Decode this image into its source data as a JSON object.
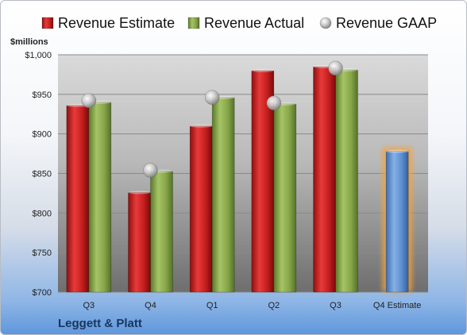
{
  "company": "Leggett & Platt",
  "chart_data": {
    "type": "bar",
    "ylabel": "$millions",
    "categories": [
      "Q3",
      "Q4",
      "Q1",
      "Q2",
      "Q3",
      "Q4 Estimate"
    ],
    "ylim": [
      700,
      1000
    ],
    "yticks": [
      "$700",
      "$750",
      "$800",
      "$850",
      "$900",
      "$950",
      "$1,000"
    ],
    "ytick_values": [
      700,
      750,
      800,
      850,
      900,
      950,
      1000
    ],
    "grid": true,
    "legend_position": "top",
    "series": [
      {
        "name": "Revenue Estimate",
        "kind": "bar",
        "color": "#d42a2a",
        "values": [
          936,
          826,
          910,
          980,
          985,
          null
        ]
      },
      {
        "name": "Revenue Actual",
        "kind": "bar",
        "color": "#8cac4c",
        "values": [
          940,
          853,
          946,
          938,
          981,
          null
        ]
      },
      {
        "name": "Revenue GAAP",
        "kind": "marker",
        "color": "#c8c8c8",
        "values": [
          942,
          854,
          946,
          939,
          983,
          null
        ]
      }
    ],
    "future_estimate": {
      "category_index": 5,
      "value": 878,
      "color": "#5b8fd0",
      "glow": "#f6a13a"
    }
  }
}
